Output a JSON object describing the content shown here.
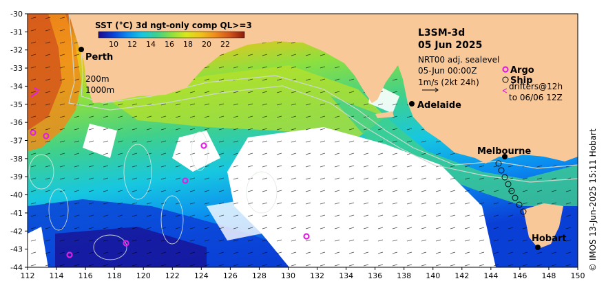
{
  "colorbar": {
    "title": "SST (°C) 3d ngt-only comp QL>=3",
    "ticks": [
      "10",
      "12",
      "14",
      "16",
      "18",
      "20",
      "22"
    ],
    "colors": [
      "#1a0a8c",
      "#0a3fd6",
      "#0a8cf0",
      "#17c7e0",
      "#3fd08c",
      "#8ce03f",
      "#d8e81a",
      "#f0c21a",
      "#f08c1a",
      "#d2541a",
      "#8c1a0a"
    ]
  },
  "title": {
    "product": "L3SM-3d",
    "date": "05 Jun 2025"
  },
  "info": {
    "sealevel": "NRT00 adj. sealevel",
    "time": "05-Jun 00:00Z",
    "vector_scale": "1m/s (2kt 24h)",
    "legend_argo": "Argo",
    "legend_ship": "Ship",
    "legend_drifters_line1": "drifters@12h",
    "legend_drifters_line2": "to 06/06 12Z"
  },
  "contours": {
    "c200": "200m",
    "c1000": "1000m"
  },
  "cities": {
    "perth": "Perth",
    "adelaide": "Adelaide",
    "melbourne": "Melbourne",
    "hobart": "Hobart"
  },
  "xaxis": {
    "ticks": [
      "112",
      "114",
      "116",
      "118",
      "120",
      "122",
      "124",
      "126",
      "128",
      "130",
      "132",
      "134",
      "136",
      "138",
      "140",
      "142",
      "144",
      "146",
      "148",
      "150"
    ]
  },
  "yaxis": {
    "ticks": [
      "-30",
      "-31",
      "-32",
      "-33",
      "-34",
      "-35",
      "-36",
      "-37",
      "-38",
      "-39",
      "-40",
      "-41",
      "-42",
      "-43",
      "-44"
    ]
  },
  "credit": "© IMOS 13-Jun-2025 15:11 Hobart",
  "colors": {
    "land": "#f9c899",
    "no_data": "#ffffff",
    "argo": "#e020e0"
  }
}
